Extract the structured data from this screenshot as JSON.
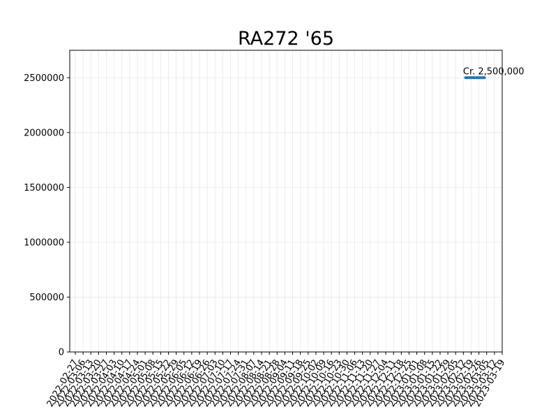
{
  "chart_data": {
    "type": "line",
    "title": "RA272 '65",
    "xlabel": "",
    "ylabel": "",
    "x_ticks": [
      "2022-02-27",
      "2022-03-06",
      "2022-03-13",
      "2022-03-20",
      "2022-03-27",
      "2022-04-03",
      "2022-04-10",
      "2022-04-17",
      "2022-04-24",
      "2022-05-01",
      "2022-05-08",
      "2022-05-15",
      "2022-05-22",
      "2022-05-29",
      "2022-06-05",
      "2022-06-12",
      "2022-06-19",
      "2022-06-26",
      "2022-07-03",
      "2022-07-10",
      "2022-07-17",
      "2022-07-24",
      "2022-07-31",
      "2022-08-07",
      "2022-08-14",
      "2022-08-21",
      "2022-08-28",
      "2022-09-04",
      "2022-09-11",
      "2022-09-18",
      "2022-09-25",
      "2022-10-02",
      "2022-10-09",
      "2022-10-16",
      "2022-10-23",
      "2022-10-30",
      "2022-11-06",
      "2022-11-13",
      "2022-11-20",
      "2022-11-27",
      "2022-12-04",
      "2022-12-11",
      "2022-12-18",
      "2022-12-25",
      "2023-01-01",
      "2023-01-08",
      "2023-01-15",
      "2023-01-22",
      "2023-01-29",
      "2023-02-05",
      "2023-02-12",
      "2023-02-19",
      "2023-02-26",
      "2023-03-05",
      "2023-03-12",
      "2023-03-19"
    ],
    "y_ticks": [
      0,
      500000,
      1000000,
      1500000,
      2000000,
      2500000
    ],
    "xlim": [
      "2022-02-22",
      "2023-03-19"
    ],
    "ylim": [
      0,
      2750000
    ],
    "grid": true,
    "series": [
      {
        "color": "#1f77b4",
        "points": [
          {
            "x": "2023-02-14",
            "y": 2500000
          },
          {
            "x": "2023-03-03",
            "y": 2500000
          }
        ]
      }
    ],
    "annotations": [
      {
        "text": "Cr. 2,500,000",
        "x": "2023-02-18",
        "y": 2500000
      }
    ]
  }
}
